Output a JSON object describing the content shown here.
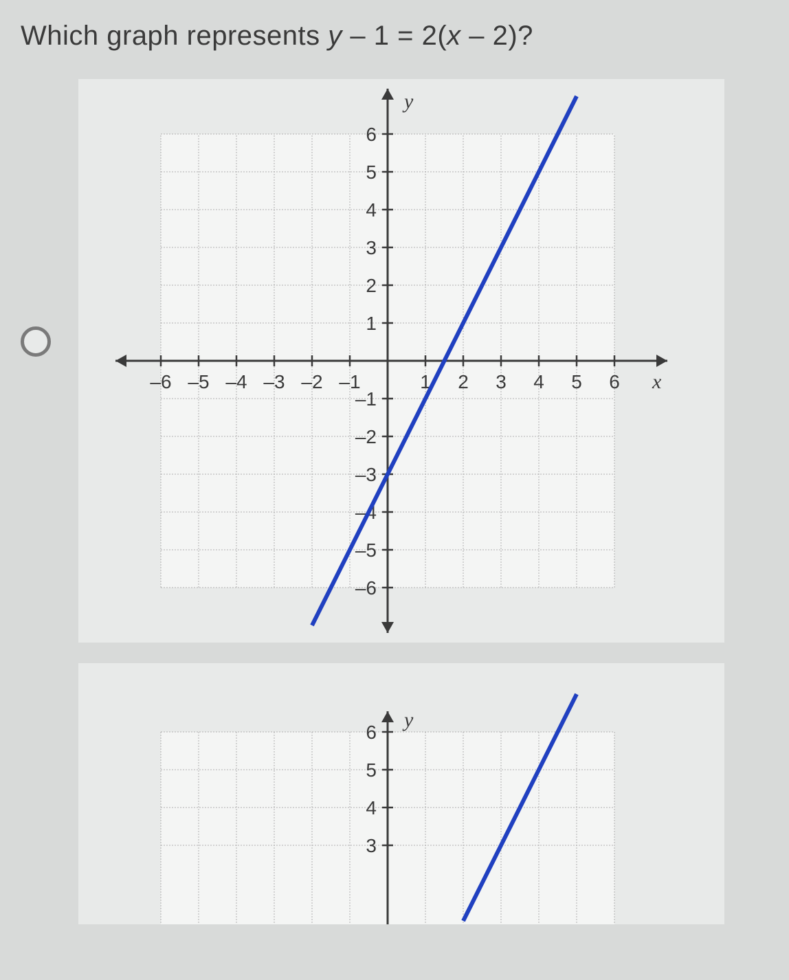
{
  "question": {
    "prefix": "Which graph represents ",
    "var_y": "y",
    "mid1": " – 1 = 2(",
    "var_x": "x",
    "mid2": " – 2)?",
    "fontsize": 40,
    "color": "#3a3a3a"
  },
  "chart1": {
    "type": "line",
    "background_color": "#f4f5f4",
    "grid_color": "#b0b0b0",
    "axis_color": "#3a3a3a",
    "line_color": "#2040c0",
    "tick_label_color": "#3a3a3a",
    "tick_fontsize": 28,
    "axis_label_fontsize": 30,
    "xlabel": "x",
    "ylabel": "y",
    "xlim": [
      -6.5,
      6.5
    ],
    "ylim": [
      -6.5,
      6.5
    ],
    "xticks": [
      -6,
      -5,
      -4,
      -3,
      -2,
      -1,
      1,
      2,
      3,
      4,
      5,
      6
    ],
    "yticks": [
      -6,
      -5,
      -4,
      -3,
      -2,
      -1,
      1,
      2,
      3,
      4,
      5,
      6
    ],
    "grid_min": -6,
    "grid_max": 6,
    "line_points": {
      "x1": -2,
      "y1": -7,
      "x2": 5,
      "y2": 7
    },
    "line_width": 6
  },
  "chart2": {
    "type": "line",
    "background_color": "#f4f5f4",
    "grid_color": "#b0b0b0",
    "axis_color": "#3a3a3a",
    "line_color": "#2040c0",
    "tick_label_color": "#3a3a3a",
    "tick_fontsize": 28,
    "axis_label_fontsize": 30,
    "ylabel": "y",
    "yticks_visible": [
      6,
      5,
      4,
      3
    ],
    "grid_min": -6,
    "grid_max": 6,
    "line_points": {
      "x1": 2,
      "y1": 1,
      "x2": 5,
      "y2": 7
    },
    "line_width": 6,
    "visible_ymin": 2.5
  },
  "radio": {
    "border_color": "#7a7a7a",
    "fill_color": "#e8eae9"
  }
}
